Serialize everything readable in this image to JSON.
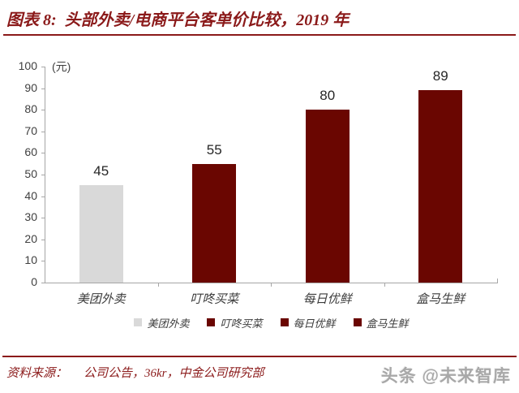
{
  "figure": {
    "title": "图表 8:  头部外卖/电商平台客单价比较，2019 年",
    "source_label": "资料来源：",
    "source_text": "公司公告，36kr，中金公司研究部",
    "watermark": "头条 @未来智库"
  },
  "colors": {
    "accent_dark_red": "#8b1a1a",
    "bar_dark_red": "#6a0601",
    "bar_gray": "#d9d9d9",
    "axis_gray": "#a6a6a6",
    "text_dark": "#262626"
  },
  "chart_data": {
    "type": "bar",
    "title": "头部外卖/电商平台客单价比较，2019 年",
    "unit_label": "(元)",
    "categories": [
      "美团外卖",
      "叮咚买菜",
      "每日优鲜",
      "盒马生鲜"
    ],
    "values": [
      45,
      55,
      80,
      89
    ],
    "bar_colors": [
      "#d9d9d9",
      "#6a0601",
      "#6a0601",
      "#6a0601"
    ],
    "xlabel": "",
    "ylabel": "元",
    "ylim": [
      0,
      100
    ],
    "ytick_step": 10,
    "grid": false,
    "legend_position": "bottom",
    "legend": [
      "美团外卖",
      "叮咚买菜",
      "每日优鲜",
      "盒马生鲜"
    ]
  }
}
